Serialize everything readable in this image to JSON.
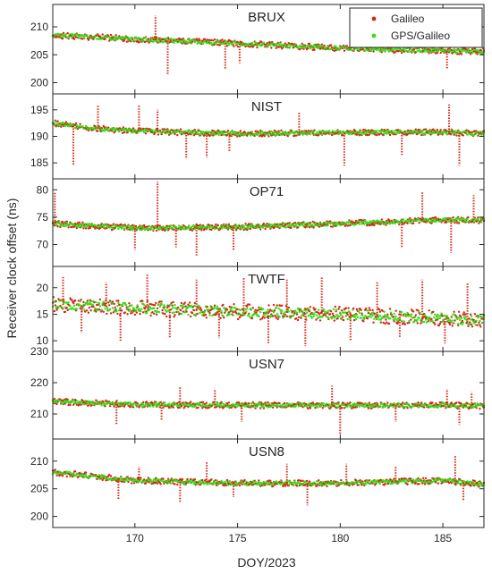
{
  "chart_data": {
    "type": "scatter",
    "xlabel": "DOY/2023",
    "ylabel": "Receiver clock offset (ns)",
    "xlim": [
      166,
      187
    ],
    "xticks": [
      170,
      175,
      180,
      185
    ],
    "legend": {
      "placement": "top-right",
      "entries": [
        {
          "name": "Galileo",
          "color": "#d62718"
        },
        {
          "name": "GPS/Galileo",
          "color": "#33e01a"
        }
      ]
    },
    "panels": [
      {
        "title": "BRUX",
        "ylim": [
          198,
          214
        ],
        "yticks": [
          200,
          205,
          210
        ],
        "trend": [
          [
            166,
            208.5
          ],
          [
            170,
            207.8
          ],
          [
            175,
            207.0
          ],
          [
            180,
            206.2
          ],
          [
            185,
            205.7
          ],
          [
            187,
            205.6
          ]
        ],
        "spikes": [
          [
            171.0,
            212.0
          ],
          [
            174.4,
            202.5
          ],
          [
            175.1,
            203.5
          ],
          [
            171.6,
            201.5
          ],
          [
            185.2,
            202.5
          ]
        ]
      },
      {
        "title": "NIST",
        "ylim": [
          182,
          198
        ],
        "yticks": [
          185,
          190,
          195
        ],
        "trend": [
          [
            166,
            192.5
          ],
          [
            168,
            191.5
          ],
          [
            170,
            191.0
          ],
          [
            175,
            190.5
          ],
          [
            180,
            190.7
          ],
          [
            185,
            190.8
          ],
          [
            187,
            190.5
          ]
        ],
        "spikes": [
          [
            167.0,
            184.5
          ],
          [
            168.2,
            196.0
          ],
          [
            170.2,
            195.8
          ],
          [
            171.1,
            195.0
          ],
          [
            172.5,
            186.0
          ],
          [
            173.5,
            186.0
          ],
          [
            174.6,
            187.0
          ],
          [
            178.0,
            194.5
          ],
          [
            180.2,
            184.5
          ],
          [
            183.0,
            186.5
          ],
          [
            185.3,
            196.0
          ],
          [
            185.8,
            184.5
          ]
        ]
      },
      {
        "title": "OP71",
        "ylim": [
          66,
          82
        ],
        "yticks": [
          70,
          75,
          80
        ],
        "trend": [
          [
            166,
            73.8
          ],
          [
            170,
            73.0
          ],
          [
            175,
            73.2
          ],
          [
            180,
            73.8
          ],
          [
            185,
            74.5
          ],
          [
            187,
            74.4
          ]
        ],
        "spikes": [
          [
            166.1,
            79.5
          ],
          [
            170.0,
            69.0
          ],
          [
            171.1,
            81.5
          ],
          [
            172.0,
            69.5
          ],
          [
            173.0,
            68.0
          ],
          [
            174.8,
            69.0
          ],
          [
            183.0,
            69.5
          ],
          [
            184.0,
            79.5
          ],
          [
            185.4,
            68.5
          ],
          [
            186.5,
            79.0
          ]
        ]
      },
      {
        "title": "TWTF",
        "ylim": [
          8,
          24
        ],
        "yticks": [
          10,
          15,
          20
        ],
        "trend": [
          [
            166,
            16.8
          ],
          [
            170,
            16.2
          ],
          [
            175,
            15.5
          ],
          [
            180,
            15.0
          ],
          [
            185,
            14.2
          ],
          [
            187,
            13.8
          ]
        ],
        "spikes": [
          [
            166.5,
            22.0
          ],
          [
            167.4,
            11.5
          ],
          [
            168.6,
            21.0
          ],
          [
            169.3,
            10.0
          ],
          [
            170.6,
            22.5
          ],
          [
            171.7,
            10.5
          ],
          [
            173.0,
            21.5
          ],
          [
            174.1,
            10.5
          ],
          [
            175.3,
            22.0
          ],
          [
            176.5,
            9.5
          ],
          [
            177.4,
            21.5
          ],
          [
            178.3,
            9.0
          ],
          [
            179.1,
            22.0
          ],
          [
            180.5,
            10.0
          ],
          [
            181.8,
            21.0
          ],
          [
            182.9,
            10.5
          ],
          [
            184.0,
            21.5
          ],
          [
            185.1,
            9.5
          ],
          [
            186.2,
            21.0
          ]
        ]
      },
      {
        "title": "USN7",
        "ylim": [
          202,
          230
        ],
        "yticks": [
          210,
          220,
          230
        ],
        "trend": [
          [
            166,
            214.0
          ],
          [
            170,
            213.0
          ],
          [
            175,
            212.8
          ],
          [
            180,
            212.7
          ],
          [
            185,
            212.8
          ],
          [
            187,
            212.5
          ]
        ],
        "spikes": [
          [
            169.1,
            206.5
          ],
          [
            171.3,
            208.0
          ],
          [
            172.2,
            218.5
          ],
          [
            173.9,
            218.0
          ],
          [
            175.2,
            207.5
          ],
          [
            179.6,
            219.0
          ],
          [
            180.0,
            203.5
          ],
          [
            182.7,
            207.5
          ],
          [
            185.2,
            218.0
          ],
          [
            185.8,
            206.5
          ],
          [
            186.4,
            217.0
          ]
        ]
      },
      {
        "title": "USN8",
        "ylim": [
          198,
          214
        ],
        "yticks": [
          200,
          205,
          210
        ],
        "trend": [
          [
            166,
            208.0
          ],
          [
            170,
            206.5
          ],
          [
            175,
            206.0
          ],
          [
            180,
            206.0
          ],
          [
            185,
            206.5
          ],
          [
            187,
            205.8
          ]
        ],
        "spikes": [
          [
            169.2,
            203.0
          ],
          [
            170.2,
            209.0
          ],
          [
            172.2,
            202.5
          ],
          [
            173.5,
            210.0
          ],
          [
            174.8,
            203.5
          ],
          [
            177.4,
            209.5
          ],
          [
            178.4,
            202.0
          ],
          [
            180.3,
            209.5
          ],
          [
            182.7,
            209.0
          ],
          [
            185.6,
            211.0
          ],
          [
            186.0,
            203.0
          ]
        ]
      }
    ]
  }
}
